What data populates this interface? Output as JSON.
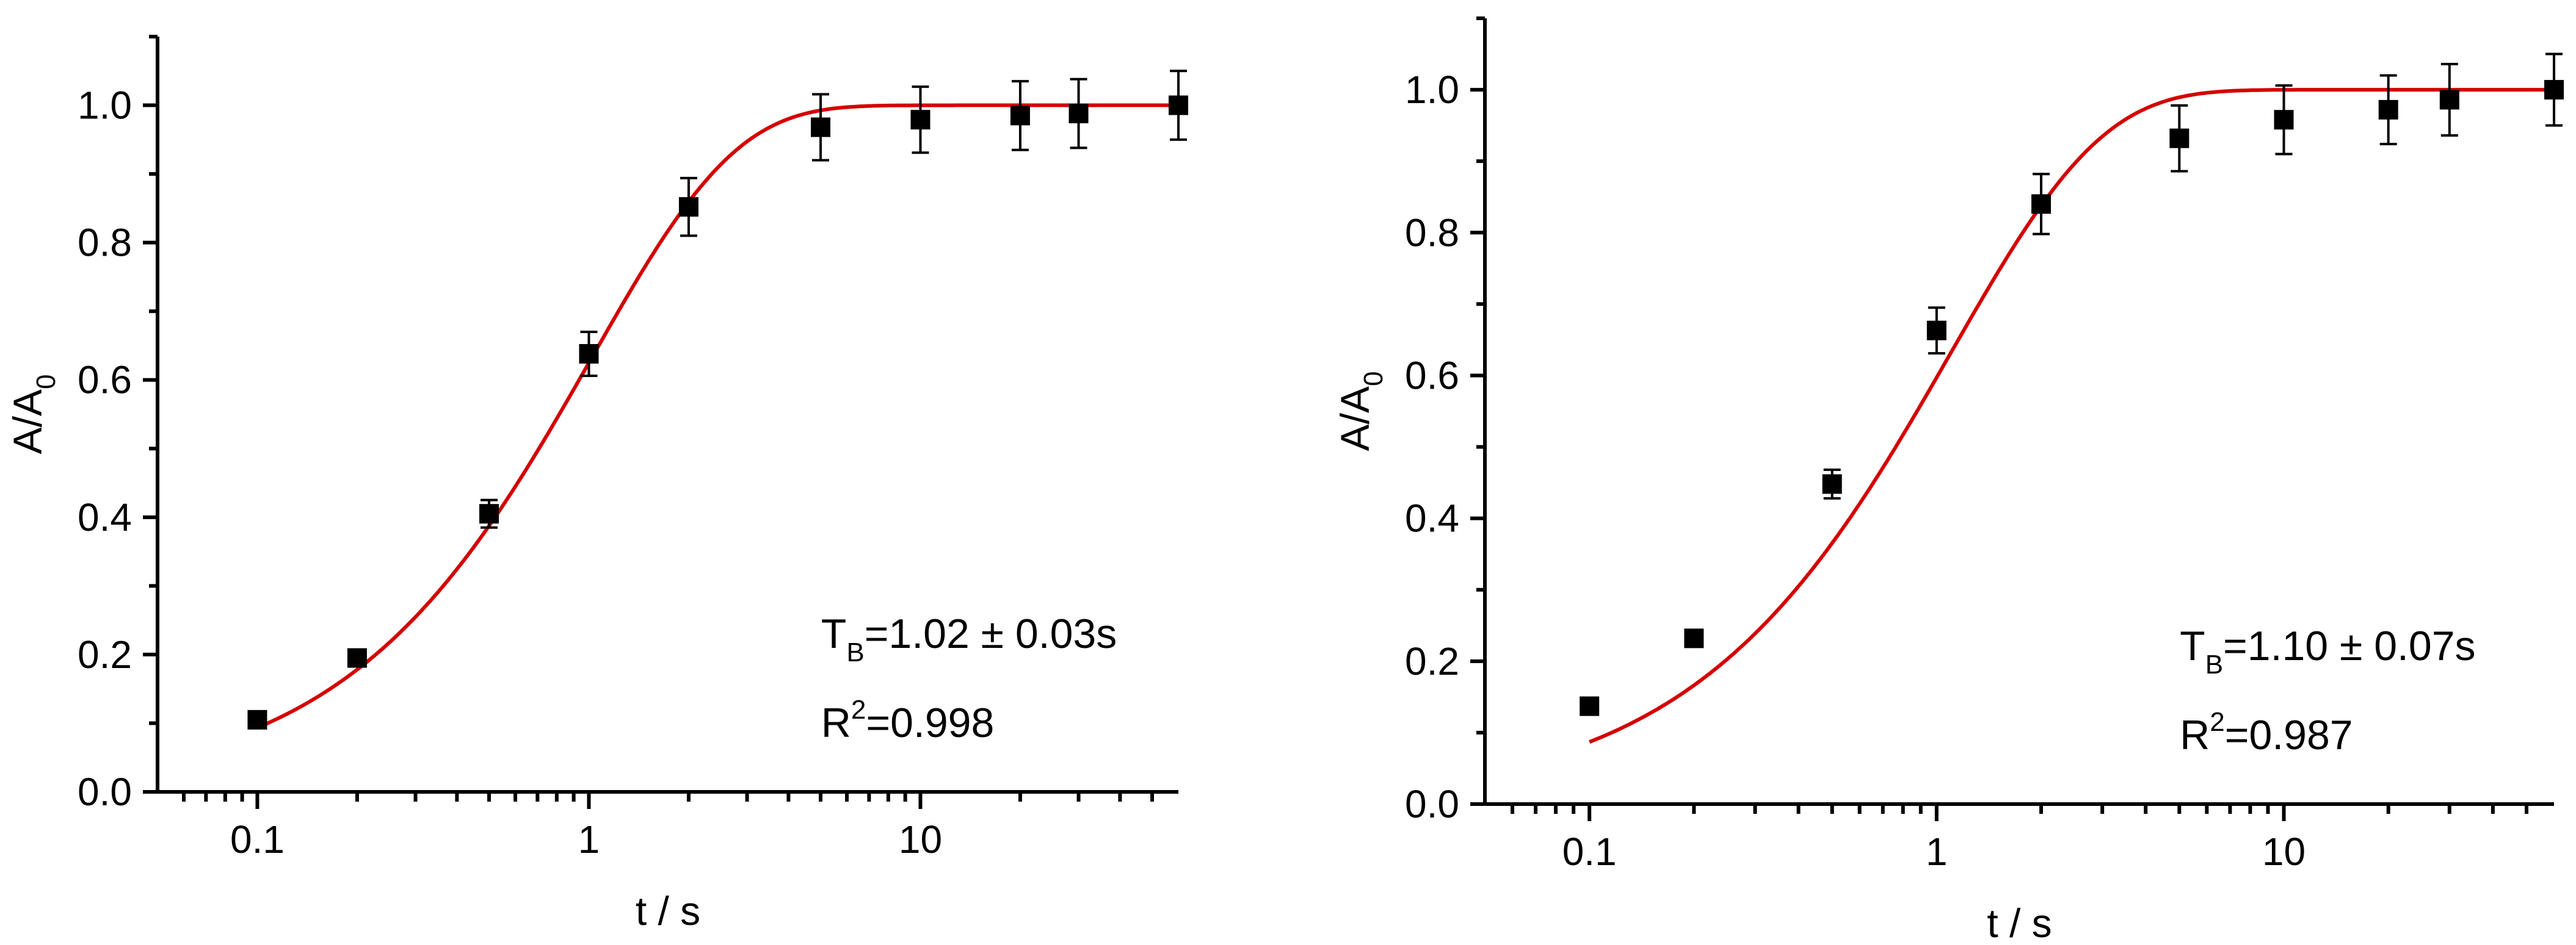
{
  "chart_data": [
    {
      "type": "scatter",
      "x_scale": "log",
      "xlim": [
        0.05,
        60
      ],
      "ylim": [
        0.0,
        1.1
      ],
      "xlabel": "t / s",
      "ylabel": "A/A",
      "ylabel_sub": "0",
      "x_ticks": [
        0.1,
        1,
        10
      ],
      "x_tick_labels": [
        "0.1",
        "1",
        "10"
      ],
      "y_ticks": [
        0.0,
        0.2,
        0.4,
        0.6,
        0.8,
        1.0
      ],
      "y_tick_labels": [
        "0.0",
        "0.2",
        "0.4",
        "0.6",
        "0.8",
        "1.0"
      ],
      "fit_color": "#d40000",
      "marker_color": "#000000",
      "fit_TB": 1.02,
      "series": [
        {
          "x": [
            0.1,
            0.2,
            0.5,
            1,
            2,
            5,
            10,
            20,
            30,
            60
          ],
          "y": [
            0.105,
            0.195,
            0.405,
            0.638,
            0.852,
            0.968,
            0.979,
            0.985,
            0.988,
            1.0
          ],
          "error": [
            0.0,
            0.0,
            0.02,
            0.032,
            0.042,
            0.048,
            0.048,
            0.05,
            0.05,
            0.05
          ]
        }
      ],
      "annotations": {
        "tb_main": "T",
        "tb_sub": "B",
        "tb_value": "=1.02 ± 0.03s",
        "r2_main": "R",
        "r2_sup": "2",
        "r2_value": "=0.998"
      }
    },
    {
      "type": "scatter",
      "x_scale": "log",
      "xlim": [
        0.05,
        60
      ],
      "ylim": [
        0.0,
        1.1
      ],
      "xlabel": "t / s",
      "ylabel": "A/A",
      "ylabel_sub": "0",
      "x_ticks": [
        0.1,
        1,
        10
      ],
      "x_tick_labels": [
        "0.1",
        "1",
        "10"
      ],
      "y_ticks": [
        0.0,
        0.2,
        0.4,
        0.6,
        0.8,
        1.0
      ],
      "y_tick_labels": [
        "0.0",
        "0.2",
        "0.4",
        "0.6",
        "0.8",
        "1.0"
      ],
      "fit_color": "#d40000",
      "marker_color": "#000000",
      "fit_TB": 1.1,
      "series": [
        {
          "x": [
            0.1,
            0.2,
            0.5,
            1,
            2,
            5,
            10,
            20,
            30,
            60
          ],
          "y": [
            0.137,
            0.232,
            0.448,
            0.663,
            0.84,
            0.932,
            0.958,
            0.972,
            0.986,
            1.0
          ],
          "error": [
            0.0,
            0.0,
            0.02,
            0.032,
            0.042,
            0.046,
            0.048,
            0.048,
            0.05,
            0.05
          ]
        }
      ],
      "annotations": {
        "tb_main": "T",
        "tb_sub": "B",
        "tb_value": "=1.10 ± 0.07s",
        "r2_main": "R",
        "r2_sup": "2",
        "r2_value": "=0.987"
      }
    }
  ]
}
